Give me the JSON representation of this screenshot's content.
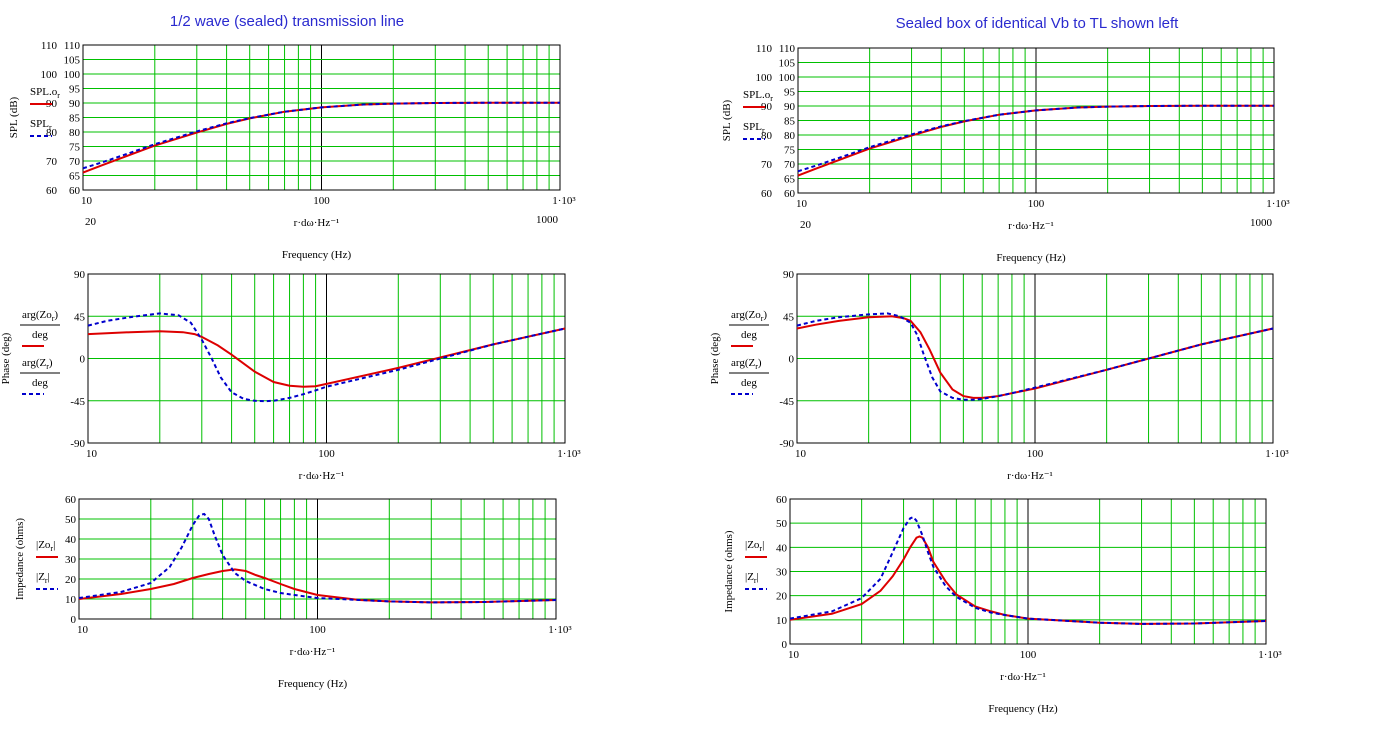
{
  "colors": {
    "grid": "#00c000",
    "frame": "#000000",
    "red_series": "#dd0000",
    "blue_series": "#0000cc",
    "title": "#2a2acf"
  },
  "titles": {
    "left": "1/2 wave (sealed) transmission line",
    "right": "Sealed box of identical Vb to TL shown left"
  },
  "chart_data": [
    {
      "id": "tl-spl",
      "type": "line",
      "xscale": "log",
      "xlim": [
        10,
        1000
      ],
      "ylim": [
        60,
        110
      ],
      "x_ticks": [
        "10",
        "100",
        "1·10³"
      ],
      "x_extra_labels": [
        "20",
        "1000"
      ],
      "y_ticks": [
        "60",
        "65",
        "70",
        "75",
        "80",
        "85",
        "90",
        "95",
        "100",
        "105",
        "110"
      ],
      "y_extra_labels": [
        "60",
        "70",
        "80",
        "90",
        "100",
        "110"
      ],
      "xlabel": "r·dω·Hz⁻¹",
      "xlabel2": "Frequency (Hz)",
      "ylabel": "SPL (dB)",
      "legend": [
        {
          "label": "SPL.o",
          "sub": "r",
          "style": "solid"
        },
        {
          "label": "SPL",
          "sub": "r",
          "style": "dashed"
        }
      ],
      "series": [
        {
          "style": "solid",
          "x": [
            10,
            12,
            15,
            20,
            30,
            40,
            50,
            70,
            100,
            150,
            200,
            300,
            500,
            1000
          ],
          "y": [
            66,
            68.5,
            71.5,
            75.3,
            79.8,
            82.8,
            84.7,
            87,
            88.5,
            89.5,
            89.8,
            90,
            90.1,
            90.1
          ]
        },
        {
          "style": "dashed",
          "x": [
            10,
            12,
            15,
            20,
            30,
            40,
            50,
            70,
            100,
            150,
            200,
            300,
            500,
            1000
          ],
          "y": [
            67.5,
            69.5,
            72.2,
            75.8,
            80.2,
            83,
            84.8,
            87,
            88.5,
            89.5,
            89.8,
            90,
            90.1,
            90.1
          ]
        }
      ]
    },
    {
      "id": "tl-phase",
      "type": "line",
      "xscale": "log",
      "xlim": [
        10,
        1000
      ],
      "ylim": [
        -90,
        90
      ],
      "x_ticks": [
        "10",
        "100",
        "1·10³"
      ],
      "y_ticks": [
        "-90",
        "-45",
        "0",
        "45",
        "90"
      ],
      "xlabel": "r·dω·Hz⁻¹",
      "ylabel": "Phase (deg)",
      "legend": [
        {
          "label": "arg(Zo",
          "sub": "r",
          "close": ")",
          "den": "deg",
          "style": "solid"
        },
        {
          "label": "arg(Z",
          "sub": "r",
          "close": ")",
          "den": "deg",
          "style": "dashed"
        }
      ],
      "series": [
        {
          "style": "solid",
          "x": [
            10,
            15,
            20,
            25,
            28,
            30,
            35,
            40,
            50,
            60,
            70,
            80,
            90,
            100,
            200,
            500,
            1000
          ],
          "y": [
            26,
            28,
            29,
            28,
            26,
            23,
            14,
            4,
            -14,
            -25,
            -29,
            -30,
            -29.5,
            -27,
            -10,
            15,
            32
          ]
        },
        {
          "style": "dashed",
          "x": [
            10,
            12,
            15,
            20,
            24,
            27,
            30,
            33,
            36,
            40,
            45,
            50,
            55,
            60,
            70,
            80,
            90,
            100,
            200,
            500,
            1000
          ],
          "y": [
            35,
            40,
            44,
            48,
            46,
            38,
            20,
            0,
            -20,
            -36,
            -43,
            -45,
            -45.5,
            -45,
            -42,
            -38,
            -34,
            -30,
            -12,
            15,
            32
          ]
        }
      ]
    },
    {
      "id": "tl-impedance",
      "type": "line",
      "xscale": "log",
      "xlim": [
        10,
        1000
      ],
      "ylim": [
        0,
        60
      ],
      "x_ticks": [
        "10",
        "100",
        "1·10³"
      ],
      "y_ticks": [
        "0",
        "10",
        "20",
        "30",
        "40",
        "50",
        "60"
      ],
      "xlabel": "r·dω·Hz⁻¹",
      "xlabel2": "Frequency (Hz)",
      "ylabel": "Impedance (ohms)",
      "legend": [
        {
          "label": "|Zo",
          "sub": "r",
          "close": "|",
          "style": "solid"
        },
        {
          "label": "|Z",
          "sub": "r",
          "close": "|",
          "style": "dashed"
        }
      ],
      "series": [
        {
          "style": "solid",
          "x": [
            10,
            15,
            20,
            25,
            30,
            35,
            40,
            45,
            50,
            55,
            60,
            70,
            80,
            100,
            150,
            200,
            300,
            500,
            1000
          ],
          "y": [
            10,
            12.5,
            15,
            17.5,
            20.5,
            22.5,
            24,
            24.8,
            24,
            22,
            20.5,
            17.5,
            15,
            12,
            9.5,
            8.8,
            8.3,
            8.5,
            9.5
          ]
        },
        {
          "style": "dashed",
          "x": [
            10,
            15,
            20,
            24,
            27,
            30,
            32,
            33.5,
            35,
            37,
            40,
            45,
            50,
            60,
            70,
            80,
            100,
            150,
            200,
            300,
            500,
            1000
          ],
          "y": [
            10.5,
            13.5,
            18,
            26,
            36,
            47,
            52,
            52.5,
            50,
            42,
            32,
            23,
            19,
            15,
            13,
            12,
            10.5,
            9.5,
            8.8,
            8.3,
            8.5,
            9.5
          ]
        }
      ]
    },
    {
      "id": "sb-spl",
      "type": "line",
      "xscale": "log",
      "xlim": [
        10,
        1000
      ],
      "ylim": [
        60,
        110
      ],
      "x_ticks": [
        "10",
        "100",
        "1·10³"
      ],
      "x_extra_labels": [
        "20",
        "1000"
      ],
      "y_ticks": [
        "60",
        "65",
        "70",
        "75",
        "80",
        "85",
        "90",
        "95",
        "100",
        "105",
        "110"
      ],
      "y_extra_labels": [
        "60",
        "70",
        "80",
        "90",
        "100",
        "110"
      ],
      "xlabel": "r·dω·Hz⁻¹",
      "xlabel2": "Frequency (Hz)",
      "ylabel": "SPL (dB)",
      "legend": [
        {
          "label": "SPL.o",
          "sub": "r",
          "style": "solid"
        },
        {
          "label": "SPL",
          "sub": "r",
          "style": "dashed"
        }
      ],
      "series": [
        {
          "style": "solid",
          "x": [
            10,
            12,
            15,
            20,
            30,
            40,
            50,
            70,
            100,
            150,
            200,
            300,
            500,
            1000
          ],
          "y": [
            66,
            68.5,
            71.5,
            75.3,
            79.8,
            82.8,
            84.7,
            87,
            88.5,
            89.5,
            89.8,
            90,
            90.1,
            90.1
          ]
        },
        {
          "style": "dashed",
          "x": [
            10,
            12,
            15,
            20,
            30,
            40,
            50,
            70,
            100,
            150,
            200,
            300,
            500,
            1000
          ],
          "y": [
            67.5,
            69.5,
            72.2,
            75.8,
            80.2,
            83,
            84.8,
            87,
            88.5,
            89.5,
            89.8,
            90,
            90.1,
            90.1
          ]
        }
      ]
    },
    {
      "id": "sb-phase",
      "type": "line",
      "xscale": "log",
      "xlim": [
        10,
        1000
      ],
      "ylim": [
        -90,
        90
      ],
      "x_ticks": [
        "10",
        "100",
        "1·10³"
      ],
      "y_ticks": [
        "-90",
        "-45",
        "0",
        "45",
        "90"
      ],
      "xlabel": "r·dω·Hz⁻¹",
      "ylabel": "Phase (deg)",
      "legend": [
        {
          "label": "arg(Zo",
          "sub": "r",
          "close": ")",
          "den": "deg",
          "style": "solid"
        },
        {
          "label": "arg(Z",
          "sub": "r",
          "close": ")",
          "den": "deg",
          "style": "dashed"
        }
      ],
      "series": [
        {
          "style": "solid",
          "x": [
            10,
            12,
            15,
            20,
            25,
            28,
            30,
            33,
            36,
            40,
            45,
            50,
            55,
            60,
            70,
            80,
            100,
            200,
            500,
            1000
          ],
          "y": [
            32,
            36,
            40,
            44,
            45,
            43,
            40,
            28,
            10,
            -15,
            -33,
            -40,
            -42,
            -42,
            -40,
            -37,
            -32,
            -12,
            15,
            32
          ]
        },
        {
          "style": "dashed",
          "x": [
            10,
            12,
            15,
            20,
            24,
            27,
            30,
            32,
            34,
            37,
            40,
            45,
            50,
            55,
            60,
            70,
            80,
            100,
            200,
            500,
            1000
          ],
          "y": [
            35,
            40,
            44,
            47,
            48,
            45,
            38,
            25,
            5,
            -20,
            -35,
            -42,
            -44,
            -44,
            -43,
            -40,
            -37,
            -31,
            -12,
            15,
            32
          ]
        }
      ]
    },
    {
      "id": "sb-impedance",
      "type": "line",
      "xscale": "log",
      "xlim": [
        10,
        1000
      ],
      "ylim": [
        0,
        60
      ],
      "x_ticks": [
        "10",
        "100",
        "1·10³"
      ],
      "y_ticks": [
        "0",
        "10",
        "20",
        "30",
        "40",
        "50",
        "60"
      ],
      "xlabel": "r·dω·Hz⁻¹",
      "xlabel2": "Frequency (Hz)",
      "ylabel": "Impedance (ohms)",
      "legend": [
        {
          "label": "|Zo",
          "sub": "r",
          "close": "|",
          "style": "solid"
        },
        {
          "label": "|Z",
          "sub": "r",
          "close": "|",
          "style": "dashed"
        }
      ],
      "series": [
        {
          "style": "solid",
          "x": [
            10,
            15,
            20,
            24,
            27,
            30,
            32,
            34,
            35,
            36,
            38,
            40,
            45,
            50,
            60,
            70,
            80,
            100,
            150,
            200,
            300,
            500,
            1000
          ],
          "y": [
            10,
            12.5,
            16.5,
            22,
            28,
            35,
            40,
            44,
            44.5,
            44,
            40,
            34,
            26,
            20.5,
            15.5,
            13.5,
            12,
            10.5,
            9.5,
            8.8,
            8.3,
            8.5,
            9.5
          ]
        },
        {
          "style": "dashed",
          "x": [
            10,
            15,
            20,
            24,
            27,
            30,
            32,
            33,
            34,
            36,
            38,
            40,
            45,
            50,
            60,
            70,
            80,
            100,
            150,
            200,
            300,
            500,
            1000
          ],
          "y": [
            10.5,
            13.5,
            19,
            27,
            38,
            48,
            52,
            52.5,
            51,
            45,
            38,
            32,
            24,
            19.5,
            15,
            13,
            12,
            10.5,
            9.5,
            8.8,
            8.3,
            8.5,
            9.5
          ]
        }
      ]
    }
  ]
}
